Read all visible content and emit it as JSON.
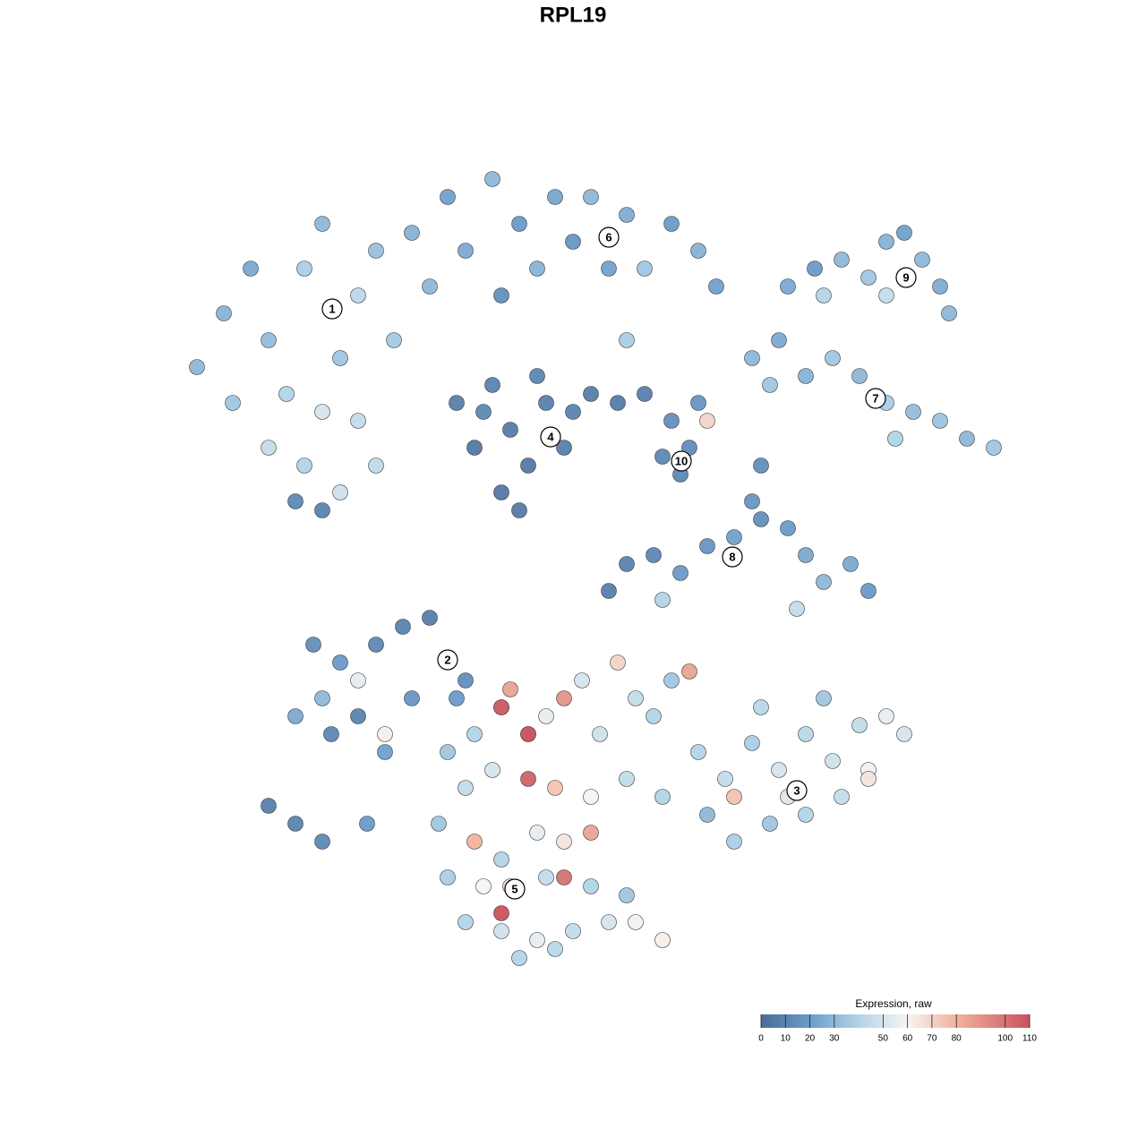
{
  "chart_data": {
    "type": "scatter",
    "title": "RPL19",
    "xlim": [
      0,
      128
    ],
    "ylim": [
      128,
      0
    ],
    "x": [
      22,
      25,
      28,
      30,
      32,
      34,
      36,
      38,
      40,
      42,
      44,
      30,
      34,
      38,
      33,
      36,
      46,
      48,
      26,
      40,
      36,
      42,
      50,
      52,
      55,
      58,
      60,
      62,
      64,
      66,
      68,
      70,
      72,
      75,
      78,
      80,
      56,
      70,
      51,
      53,
      55,
      57,
      59,
      61,
      63,
      60,
      56,
      54,
      64,
      66,
      69,
      72,
      58,
      75,
      77,
      76,
      78,
      79,
      74,
      88,
      91,
      94,
      97,
      99,
      101,
      103,
      105,
      106,
      92,
      99,
      84,
      87,
      90,
      93,
      96,
      99,
      102,
      105,
      108,
      111,
      86,
      100,
      70,
      73,
      76,
      79,
      82,
      85,
      88,
      90,
      92,
      95,
      97,
      85,
      84,
      89,
      68,
      74,
      35,
      38,
      42,
      45,
      48,
      36,
      33,
      37,
      40,
      43,
      46,
      30,
      33,
      36,
      41,
      52,
      40,
      43,
      51,
      78,
      81,
      84,
      87,
      90,
      93,
      96,
      99,
      101,
      97,
      94,
      90,
      86,
      82,
      79,
      85,
      92,
      88,
      82,
      97,
      50,
      53,
      56,
      57,
      59,
      61,
      63,
      65,
      67,
      69,
      71,
      73,
      75,
      77,
      52,
      55,
      59,
      62,
      66,
      70,
      74,
      49,
      53,
      56,
      60,
      63,
      66,
      50,
      54,
      57,
      61,
      63,
      66,
      70,
      52,
      56,
      60,
      64,
      68,
      71,
      74,
      58,
      62,
      56,
      59,
      56
    ],
    "y": [
      41,
      35,
      30,
      38,
      44,
      30,
      25,
      40,
      33,
      28,
      38,
      50,
      52,
      55,
      56,
      57,
      26,
      32,
      45,
      47,
      46,
      52,
      22,
      28,
      20,
      25,
      30,
      22,
      27,
      22,
      30,
      24,
      30,
      25,
      28,
      32,
      33,
      38,
      45,
      50,
      43,
      48,
      52,
      45,
      50,
      42,
      55,
      46,
      46,
      44,
      45,
      44,
      57,
      47,
      50,
      53,
      45,
      47,
      51,
      32,
      30,
      29,
      31,
      27,
      26,
      29,
      32,
      35,
      33,
      33,
      40,
      38,
      42,
      40,
      42,
      45,
      46,
      47,
      49,
      50,
      43,
      49,
      63,
      62,
      64,
      61,
      60,
      58,
      59,
      62,
      65,
      63,
      66,
      52,
      56,
      68,
      66,
      67,
      72,
      74,
      72,
      70,
      69,
      78,
      80,
      82,
      80,
      84,
      78,
      90,
      92,
      94,
      92,
      76,
      76,
      82,
      78,
      84,
      87,
      83,
      86,
      82,
      85,
      81,
      80,
      82,
      86,
      89,
      91,
      92,
      94,
      91,
      79,
      78,
      89,
      89,
      87,
      84,
      82,
      79,
      77,
      82,
      80,
      78,
      76,
      82,
      74,
      78,
      80,
      76,
      75,
      88,
      86,
      87,
      88,
      89,
      87,
      89,
      92,
      94,
      96,
      93,
      94,
      93,
      98,
      99,
      99,
      98,
      98,
      99,
      100,
      103,
      104,
      105,
      104,
      103,
      103,
      105,
      107,
      106,
      102,
      82,
      79
    ],
    "values": [
      30,
      28,
      25,
      32,
      40,
      38,
      30,
      35,
      42,
      33,
      36,
      45,
      40,
      48,
      12,
      10,
      28,
      30,
      35,
      45,
      50,
      44,
      22,
      25,
      30,
      20,
      28,
      24,
      18,
      30,
      22,
      26,
      35,
      20,
      28,
      22,
      15,
      38,
      8,
      5,
      10,
      7,
      6,
      9,
      8,
      11,
      5,
      12,
      10,
      8,
      7,
      9,
      6,
      15,
      14,
      12,
      18,
      70,
      12,
      25,
      20,
      30,
      35,
      28,
      22,
      30,
      26,
      30,
      40,
      45,
      30,
      25,
      28,
      35,
      30,
      38,
      32,
      34,
      30,
      35,
      35,
      40,
      10,
      12,
      20,
      18,
      22,
      15,
      20,
      25,
      30,
      25,
      20,
      15,
      18,
      45,
      8,
      40,
      15,
      20,
      12,
      10,
      8,
      30,
      25,
      12,
      10,
      22,
      18,
      8,
      10,
      12,
      20,
      15,
      55,
      62,
      20,
      40,
      45,
      38,
      50,
      42,
      48,
      45,
      55,
      50,
      58,
      45,
      40,
      35,
      38,
      30,
      42,
      35,
      52,
      75,
      65,
      35,
      40,
      60,
      85,
      80,
      55,
      90,
      50,
      48,
      70,
      45,
      40,
      35,
      85,
      45,
      50,
      105,
      75,
      60,
      45,
      40,
      35,
      80,
      40,
      55,
      65,
      85,
      38,
      60,
      70,
      45,
      100,
      40,
      35,
      40,
      48,
      55,
      45,
      50,
      58,
      62,
      40,
      42,
      110,
      110,
      108
    ],
    "clusters": [
      {
        "label": "1",
        "x": 37.1,
        "y": 34.5
      },
      {
        "label": "2",
        "x": 50.0,
        "y": 73.7
      },
      {
        "label": "3",
        "x": 89.0,
        "y": 88.3
      },
      {
        "label": "4",
        "x": 61.5,
        "y": 48.8
      },
      {
        "label": "5",
        "x": 57.5,
        "y": 99.3
      },
      {
        "label": "6",
        "x": 68.0,
        "y": 26.5
      },
      {
        "label": "7",
        "x": 97.8,
        "y": 44.5
      },
      {
        "label": "8",
        "x": 81.8,
        "y": 62.2
      },
      {
        "label": "9",
        "x": 101.2,
        "y": 31.0
      },
      {
        "label": "10",
        "x": 76.1,
        "y": 51.5
      }
    ],
    "colorbar": {
      "title": "Expression, raw",
      "lim": [
        0,
        110
      ],
      "ticks": [
        0,
        10,
        20,
        30,
        50,
        60,
        70,
        80,
        100,
        110
      ],
      "colormap": [
        {
          "value": 0,
          "color": "#4a6c98"
        },
        {
          "value": 20,
          "color": "#6a9bc8"
        },
        {
          "value": 40,
          "color": "#b2d4e8"
        },
        {
          "value": 60,
          "color": "#f7f4f2"
        },
        {
          "value": 80,
          "color": "#f0b39c"
        },
        {
          "value": 110,
          "color": "#c9525f"
        }
      ]
    }
  }
}
